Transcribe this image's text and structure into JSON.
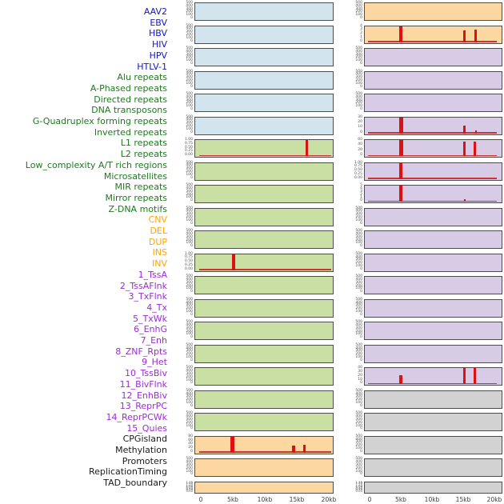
{
  "figure_title": "",
  "colors": {
    "background": "#ffffff",
    "panel_border": "#4d4d4d",
    "spike_red": "#e01010",
    "baseline_red": "#cc3333",
    "tick_text": "#555555",
    "axis_text": "#3a3a3a",
    "categories": {
      "virus": {
        "label_text": "#1515c9",
        "panel_fill": "#d2e4ed"
      },
      "repeat": {
        "label_text": "#1e7a1e",
        "panel_fill": "#c9dfa4"
      },
      "sv": {
        "label_text": "#ffa500",
        "panel_fill": "#fdd7a2"
      },
      "chromatin": {
        "label_text": "#9d2bd6",
        "panel_fill": "#d8cbe6"
      },
      "other": {
        "label_text": "#1a1a1a",
        "panel_fill": "#d2d2d2"
      }
    }
  },
  "tracks": [
    {
      "name": "AAV2",
      "category": "virus"
    },
    {
      "name": "EBV",
      "category": "virus"
    },
    {
      "name": "HBV",
      "category": "virus"
    },
    {
      "name": "HIV",
      "category": "virus"
    },
    {
      "name": "HPV",
      "category": "virus"
    },
    {
      "name": "HTLV-1",
      "category": "virus"
    },
    {
      "name": "Alu repeats",
      "category": "repeat"
    },
    {
      "name": "A-Phased repeats",
      "category": "repeat"
    },
    {
      "name": "Directed repeats",
      "category": "repeat"
    },
    {
      "name": "DNA transposons",
      "category": "repeat"
    },
    {
      "name": "G-Quadruplex forming repeats",
      "category": "repeat"
    },
    {
      "name": "Inverted repeats",
      "category": "repeat"
    },
    {
      "name": "L1 repeats",
      "category": "repeat"
    },
    {
      "name": "L2 repeats",
      "category": "repeat"
    },
    {
      "name": "Low_complexity A/T rich regions",
      "category": "repeat"
    },
    {
      "name": "Microsatellites",
      "category": "repeat"
    },
    {
      "name": "MIR repeats",
      "category": "repeat"
    },
    {
      "name": "Mirror repeats",
      "category": "repeat"
    },
    {
      "name": "Z-DNA motifs",
      "category": "repeat"
    },
    {
      "name": "CNV",
      "category": "sv"
    },
    {
      "name": "DEL",
      "category": "sv"
    },
    {
      "name": "DUP",
      "category": "sv"
    },
    {
      "name": "INS",
      "category": "sv"
    },
    {
      "name": "INV",
      "category": "sv"
    },
    {
      "name": "1_TssA",
      "category": "chromatin"
    },
    {
      "name": "2_TssAFlnk",
      "category": "chromatin"
    },
    {
      "name": "3_TxFlnk",
      "category": "chromatin"
    },
    {
      "name": "4_Tx",
      "category": "chromatin"
    },
    {
      "name": "5_TxWk",
      "category": "chromatin"
    },
    {
      "name": "6_EnhG",
      "category": "chromatin"
    },
    {
      "name": "7_Enh",
      "category": "chromatin"
    },
    {
      "name": "8_ZNF_Rpts",
      "category": "chromatin"
    },
    {
      "name": "9_Het",
      "category": "chromatin"
    },
    {
      "name": "10_TssBiv",
      "category": "chromatin"
    },
    {
      "name": "11_BivFlnk",
      "category": "chromatin"
    },
    {
      "name": "12_EnhBiv",
      "category": "chromatin"
    },
    {
      "name": "13_ReprPC",
      "category": "chromatin"
    },
    {
      "name": "14_ReprPCWk",
      "category": "chromatin"
    },
    {
      "name": "15_Quies",
      "category": "chromatin"
    },
    {
      "name": "CPGisland",
      "category": "other"
    },
    {
      "name": "Methylation",
      "category": "other"
    },
    {
      "name": "Promoters",
      "category": "other"
    },
    {
      "name": "ReplicationTiming",
      "category": "other"
    },
    {
      "name": "TAD_boundary",
      "category": "other"
    }
  ],
  "tick_presets": {
    "t500": [
      "500",
      "400",
      "300",
      "200",
      "100",
      "0"
    ],
    "t1": [
      "1.00",
      "0.75",
      "0.50",
      "0.25",
      "0.00"
    ],
    "t80": [
      "80",
      "60",
      "40",
      "20",
      "0"
    ],
    "t4": [
      "4",
      "3",
      "2",
      "1",
      "0"
    ],
    "t30": [
      "30",
      "20",
      "10",
      "0"
    ],
    "t60": [
      "60",
      "40",
      "20",
      "0"
    ],
    "t5": [
      "5",
      "4",
      "3",
      "2",
      "1",
      "0"
    ],
    "t40": [
      "40",
      "30",
      "20",
      "10",
      "0"
    ],
    "tdense": [
      "1.75",
      "1.50",
      "1.25",
      "1.00",
      "0.75",
      "0.50",
      "0.25",
      "0.00"
    ]
  },
  "axis": {
    "x_ticks_kb": [
      0,
      5,
      10,
      15,
      20
    ],
    "x_labels": [
      "0",
      "5kb",
      "10kb",
      "15kb",
      "20kb"
    ]
  },
  "chart_data": {
    "type": "bar",
    "x_unit": "kb",
    "x_range_kb": [
      0,
      20
    ],
    "grid": "22 rows x 2 columns, one mini bar-track per cell",
    "columns": [
      {
        "cells": [
          {
            "track": "AAV2",
            "yticks": "t500",
            "ymax": 500,
            "baseline": false,
            "bars": []
          },
          {
            "track": "EBV",
            "yticks": "t500",
            "ymax": 500,
            "baseline": false,
            "bars": []
          },
          {
            "track": "HBV",
            "yticks": "t500",
            "ymax": 500,
            "baseline": false,
            "bars": []
          },
          {
            "track": "HIV",
            "yticks": "t500",
            "ymax": 500,
            "baseline": false,
            "bars": []
          },
          {
            "track": "HPV",
            "yticks": "t500",
            "ymax": 500,
            "baseline": false,
            "bars": []
          },
          {
            "track": "HTLV-1",
            "yticks": "t500",
            "ymax": 500,
            "baseline": false,
            "bars": []
          },
          {
            "track": "Alu repeats",
            "yticks": "t1",
            "ymax": 1,
            "baseline": true,
            "bars": [
              {
                "kb": 16.4,
                "value": 1.0,
                "frac": 1,
                "w": 3
              }
            ]
          },
          {
            "track": "A-Phased repeats",
            "yticks": "t500",
            "ymax": 500,
            "baseline": false,
            "bars": []
          },
          {
            "track": "Directed repeats",
            "yticks": "t500",
            "ymax": 500,
            "baseline": false,
            "bars": []
          },
          {
            "track": "DNA transposons",
            "yticks": "t500",
            "ymax": 500,
            "baseline": false,
            "bars": []
          },
          {
            "track": "G-Quadruplex forming repeats",
            "yticks": "t500",
            "ymax": 500,
            "baseline": false,
            "bars": []
          },
          {
            "track": "Inverted repeats",
            "yticks": "t1",
            "ymax": 1,
            "baseline": true,
            "bars": [
              {
                "kb": 5.0,
                "value": 1.0,
                "frac": 1,
                "w": 4
              }
            ]
          },
          {
            "track": "L1 repeats",
            "yticks": "t500",
            "ymax": 500,
            "baseline": false,
            "bars": []
          },
          {
            "track": "L2 repeats",
            "yticks": "t500",
            "ymax": 500,
            "baseline": false,
            "bars": []
          },
          {
            "track": "Low_complexity A/T rich regions",
            "yticks": "t500",
            "ymax": 500,
            "baseline": false,
            "bars": []
          },
          {
            "track": "Microsatellites",
            "yticks": "t500",
            "ymax": 500,
            "baseline": false,
            "bars": []
          },
          {
            "track": "MIR repeats",
            "yticks": "t500",
            "ymax": 500,
            "baseline": false,
            "bars": []
          },
          {
            "track": "Mirror repeats",
            "yticks": "t500",
            "ymax": 500,
            "baseline": false,
            "bars": []
          },
          {
            "track": "Z-DNA motifs",
            "yticks": "t500",
            "ymax": 500,
            "baseline": false,
            "bars": []
          },
          {
            "track": "CNV",
            "yticks": "t80",
            "ymax": 80,
            "baseline": true,
            "bars": [
              {
                "kb": 4.8,
                "value": 80,
                "frac": 1,
                "w": 5
              },
              {
                "kb": 14.4,
                "value": 35,
                "frac": 0.45,
                "w": 4
              },
              {
                "kb": 16.1,
                "value": 40,
                "frac": 0.5,
                "w": 3
              }
            ]
          },
          {
            "track": "DEL",
            "yticks": "t500",
            "ymax": 500,
            "baseline": false,
            "bars": []
          },
          {
            "track": "DUP",
            "yticks": "tdense",
            "ymax": 1.75,
            "baseline": false,
            "bars": []
          }
        ]
      },
      {
        "cells": [
          {
            "track": "INS",
            "yticks": "t500",
            "ymax": 500,
            "baseline": false,
            "bars": []
          },
          {
            "track": "INV",
            "yticks": "t4",
            "ymax": 4,
            "baseline": true,
            "bars": [
              {
                "kb": 4.9,
                "value": 4,
                "frac": 1,
                "w": 4
              },
              {
                "kb": 15.1,
                "value": 3,
                "frac": 0.75,
                "w": 3
              },
              {
                "kb": 16.9,
                "value": 3.1,
                "frac": 0.78,
                "w": 3
              }
            ]
          },
          {
            "track": "1_TssA",
            "yticks": "t500",
            "ymax": 500,
            "baseline": false,
            "bars": []
          },
          {
            "track": "2_TssAFlnk",
            "yticks": "t500",
            "ymax": 500,
            "baseline": false,
            "bars": []
          },
          {
            "track": "3_TxFlnk",
            "yticks": "t500",
            "ymax": 500,
            "baseline": false,
            "bars": []
          },
          {
            "track": "4_Tx",
            "yticks": "t30",
            "ymax": 30,
            "baseline": true,
            "bars": [
              {
                "kb": 4.9,
                "value": 32,
                "frac": 1,
                "w": 5
              },
              {
                "kb": 15.1,
                "value": 15,
                "frac": 0.5,
                "w": 3
              },
              {
                "kb": 16.9,
                "value": 5,
                "frac": 0.16,
                "w": 2
              }
            ]
          },
          {
            "track": "5_TxWk",
            "yticks": "t60",
            "ymax": 60,
            "baseline": true,
            "bars": [
              {
                "kb": 4.9,
                "value": 62,
                "frac": 1,
                "w": 5
              },
              {
                "kb": 15.0,
                "value": 55,
                "frac": 0.9,
                "w": 3
              },
              {
                "kb": 16.7,
                "value": 55,
                "frac": 0.9,
                "w": 3
              }
            ]
          },
          {
            "track": "6_EnhG",
            "yticks": "t1",
            "ymax": 1,
            "baseline": true,
            "bars": [
              {
                "kb": 4.9,
                "value": 1.0,
                "frac": 1,
                "w": 4
              }
            ]
          },
          {
            "track": "7_Enh",
            "yticks": "t5",
            "ymax": 5,
            "baseline": true,
            "bars": [
              {
                "kb": 4.9,
                "value": 5,
                "frac": 1,
                "w": 4
              },
              {
                "kb": 15.1,
                "value": 0.9,
                "frac": 0.18,
                "w": 2
              }
            ]
          },
          {
            "track": "8_ZNF_Rpts",
            "yticks": "t500",
            "ymax": 500,
            "baseline": false,
            "bars": []
          },
          {
            "track": "9_Het",
            "yticks": "t500",
            "ymax": 500,
            "baseline": false,
            "bars": []
          },
          {
            "track": "10_TssBiv",
            "yticks": "t500",
            "ymax": 500,
            "baseline": false,
            "bars": []
          },
          {
            "track": "11_BivFlnk",
            "yticks": "t500",
            "ymax": 500,
            "baseline": false,
            "bars": []
          },
          {
            "track": "12_EnhBiv",
            "yticks": "t500",
            "ymax": 500,
            "baseline": false,
            "bars": []
          },
          {
            "track": "13_ReprPC",
            "yticks": "t500",
            "ymax": 500,
            "baseline": false,
            "bars": []
          },
          {
            "track": "14_ReprPCWk",
            "yticks": "t500",
            "ymax": 500,
            "baseline": false,
            "bars": []
          },
          {
            "track": "15_Quies",
            "yticks": "t40",
            "ymax": 40,
            "baseline": true,
            "bars": [
              {
                "kb": 4.9,
                "value": 22,
                "frac": 0.55,
                "w": 4
              },
              {
                "kb": 15.0,
                "value": 40,
                "frac": 1,
                "w": 3
              },
              {
                "kb": 16.7,
                "value": 40,
                "frac": 1,
                "w": 3
              }
            ]
          },
          {
            "track": "CPGisland",
            "yticks": "t500",
            "ymax": 500,
            "baseline": false,
            "bars": []
          },
          {
            "track": "Methylation",
            "yticks": "t500",
            "ymax": 500,
            "baseline": false,
            "bars": []
          },
          {
            "track": "Promoters",
            "yticks": "t500",
            "ymax": 500,
            "baseline": false,
            "bars": []
          },
          {
            "track": "ReplicationTiming",
            "yticks": "t500",
            "ymax": 500,
            "baseline": false,
            "bars": []
          },
          {
            "track": "TAD_boundary",
            "yticks": "tdense",
            "ymax": 1.75,
            "baseline": false,
            "bars": []
          }
        ]
      }
    ]
  }
}
